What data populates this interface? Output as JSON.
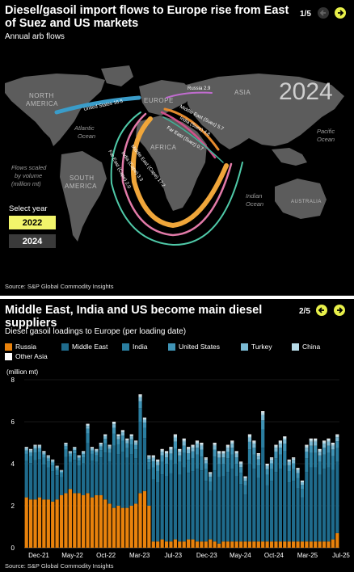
{
  "panel1": {
    "title": "Diesel/gasoil import flows to Europe rise from East of Suez and US markets",
    "subtitle": "Annual arb flows",
    "pager": "1/5",
    "year_overlay": "2024",
    "flows_note_line1": "Flows scaled",
    "flows_note_line2": "by volume",
    "flows_note_line3": "(million mt)",
    "select_year_label": "Select year",
    "year_buttons": [
      "2022",
      "2024"
    ],
    "map_labels": {
      "north_america_1": "NORTH",
      "north_america_2": "AMERICA",
      "south_america_1": "SOUTH",
      "south_america_2": "AMERICA",
      "europe": "EUROPE",
      "asia": "ASIA",
      "africa": "AFRICA",
      "australia": "AUSTRALIA",
      "atlantic_1": "Atlantic",
      "atlantic_2": "Ocean",
      "indian_1": "Indian",
      "indian_2": "Ocean",
      "pacific_1": "Pacific",
      "pacific_2": "Ocean"
    },
    "flows": [
      {
        "label": "United States 16.5",
        "color": "#3a9cc9"
      },
      {
        "label": "Russia 2.9",
        "color": "#c06ccf"
      },
      {
        "label": "Middle East (Suez) 5.7",
        "color": "#e48a2e"
      },
      {
        "label": "India (Suez) 4.8",
        "color": "#d14f8a"
      },
      {
        "label": "Far East (Suez) 0.7",
        "color": "#3fb59a"
      },
      {
        "label": "Middle East (Cape) 17.2",
        "color": "#f0a63a"
      },
      {
        "label": "India (Cape) 3.3",
        "color": "#e27aa8"
      },
      {
        "label": "Far East (Cape) 2.0",
        "color": "#4fc9a8"
      }
    ],
    "source": "Source: S&P Global Commodity Insights"
  },
  "panel2": {
    "title": "Middle East, India and US become main diesel suppliers",
    "subtitle": "Diesel gasoil loadings to Europe (per loading date)",
    "pager": "2/5",
    "source": "Source: S&P Global Commodity Insights",
    "colors": {
      "Russia": "#e8820c",
      "Middle East": "#1f6b8c",
      "India": "#2a7ea0",
      "United States": "#3f93b5",
      "Turkey": "#7bbad4",
      "China": "#b7dbe8",
      "Other Asia": "#ffffff"
    }
  },
  "chart_data": {
    "type": "bar",
    "stacked": true,
    "title": "Middle East, India and US become main diesel suppliers",
    "subtitle": "Diesel gasoil loadings to Europe (per loading date)",
    "ylabel": "(million mt)",
    "ylim": [
      0,
      8
    ],
    "yticks": [
      0,
      2,
      4,
      6,
      8
    ],
    "xtick_labels": [
      "Dec-21",
      "May-22",
      "Oct-22",
      "Mar-23",
      "Jul-23",
      "Dec-23",
      "May-24",
      "Oct-24",
      "Mar-25",
      "Jul-25"
    ],
    "legend": [
      "Russia",
      "Middle East",
      "India",
      "United States",
      "Turkey",
      "China",
      "Other Asia"
    ],
    "totals": [
      4.8,
      4.7,
      4.9,
      4.9,
      4.6,
      4.4,
      4.2,
      3.9,
      3.7,
      5.0,
      4.6,
      4.8,
      4.4,
      4.6,
      5.9,
      4.8,
      4.7,
      5.0,
      5.4,
      4.9,
      6.0,
      5.4,
      5.6,
      5.2,
      5.4,
      5.1,
      7.3,
      6.2,
      4.4,
      4.4,
      4.2,
      4.7,
      4.6,
      4.8,
      5.4,
      4.7,
      5.2,
      4.8,
      4.9,
      5.1,
      5.0,
      4.3,
      3.6,
      5.0,
      4.6,
      4.6,
      4.9,
      5.1,
      4.6,
      4.1,
      3.4,
      5.4,
      5.1,
      4.5,
      6.5,
      4.0,
      4.3,
      4.9,
      5.1,
      5.3,
      4.2,
      4.3,
      3.8,
      3.2,
      4.9,
      5.2,
      5.2,
      4.7,
      5.1,
      5.2,
      5.0,
      5.4
    ],
    "russia": [
      2.4,
      2.3,
      2.3,
      2.4,
      2.3,
      2.3,
      2.2,
      2.3,
      2.5,
      2.6,
      2.8,
      2.6,
      2.6,
      2.5,
      2.6,
      2.4,
      2.5,
      2.5,
      2.3,
      2.1,
      1.9,
      2.0,
      1.9,
      1.9,
      2.0,
      2.1,
      2.6,
      2.7,
      2.0,
      0.3,
      0.3,
      0.4,
      0.3,
      0.3,
      0.4,
      0.3,
      0.3,
      0.4,
      0.4,
      0.3,
      0.3,
      0.3,
      0.4,
      0.3,
      0.2,
      0.3,
      0.3,
      0.3,
      0.3,
      0.3,
      0.3,
      0.3,
      0.3,
      0.3,
      0.3,
      0.3,
      0.3,
      0.3,
      0.3,
      0.3,
      0.3,
      0.3,
      0.3,
      0.3,
      0.3,
      0.3,
      0.3,
      0.3,
      0.3,
      0.3,
      0.4,
      0.7
    ]
  }
}
